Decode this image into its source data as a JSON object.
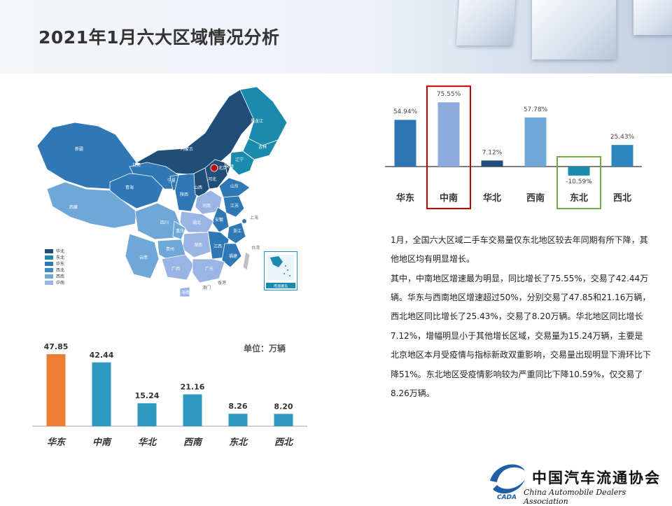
{
  "title": "2021年1月六大区域情况分析",
  "map": {
    "labels": [
      "新疆",
      "西藏",
      "青海",
      "甘肃",
      "内蒙古",
      "黑龙江",
      "吉林",
      "辽宁",
      "北京",
      "天津",
      "河北",
      "山西",
      "山东",
      "陕西",
      "宁夏",
      "河南",
      "江苏",
      "上海",
      "安徽",
      "四川",
      "重庆",
      "湖北",
      "浙江",
      "江西",
      "湖南",
      "福建",
      "贵州",
      "云南",
      "广西",
      "广东",
      "台湾",
      "海南",
      "香港",
      "澳门"
    ],
    "legend": [
      "华北",
      "东北",
      "华东",
      "西北",
      "西南",
      "中南"
    ],
    "inset_label": "南海诸岛",
    "colors": {
      "dark": "#1f4e79",
      "teal": "#1a8aad",
      "mid": "#2f78b5",
      "blue2": "#3d8ac2",
      "light": "#6fa8d6",
      "lav": "#9ab5e3"
    }
  },
  "chart_data": [
    {
      "type": "bar",
      "categories": [
        "华东",
        "中南",
        "华北",
        "西南",
        "东北",
        "西北"
      ],
      "values": [
        54.94,
        75.55,
        7.12,
        57.78,
        -10.59,
        25.43
      ],
      "value_labels": [
        "54.94%",
        "75.55%",
        "7.12%",
        "57.78%",
        "-10.59%",
        "25.43%"
      ],
      "colors": [
        "#2e75b6",
        "#8faadc",
        "#1f4e79",
        "#6fa8d6",
        "#1a8aad",
        "#2e86c1"
      ],
      "highlight": [
        "中南",
        "东北"
      ],
      "highlight_colors": [
        "#c00000",
        "#70ad47"
      ],
      "ylim": [
        -15,
        80
      ]
    },
    {
      "type": "bar",
      "categories": [
        "华东",
        "中南",
        "华北",
        "西南",
        "东北",
        "西北"
      ],
      "values": [
        47.85,
        42.44,
        15.24,
        21.16,
        8.26,
        8.2
      ],
      "value_labels": [
        "47.85",
        "42.44",
        "15.24",
        "21.16",
        "8.26",
        "8.20"
      ],
      "colors": [
        "#ed7d31",
        "#2e9ac0",
        "#2e9ac0",
        "#2e9ac0",
        "#2e9ac0",
        "#2e9ac0"
      ],
      "unit_label": "单位：万辆",
      "ylim": [
        0,
        55
      ]
    }
  ],
  "description": [
    "1月，全国六大区域二手车交易量仅东北地区较去年同期有所下降，其他地区均有明显增长。",
    "其中，中南地区增速最为明显，同比增长了75.55%，交易了42.44万辆。华东与西南地区增速超过50%，分别交易了47.85和21.16万辆，西北地区同比增长了25.43%，交易了8.20万辆。华北地区同比增长7.12%，增幅明显小于其他增长区域，交易量为15.24万辆，主要是北京地区本月受疫情与指标新政双重影响，交易量出现明显下滑环比下降51%。东北地区受疫情影响较为严重同比下降10.59%，仅交易了8.26万辆。"
  ],
  "logo": {
    "cn": "中国汽车流通协会",
    "en": "China Automobile Dealers Association",
    "abbr": "CADA"
  }
}
